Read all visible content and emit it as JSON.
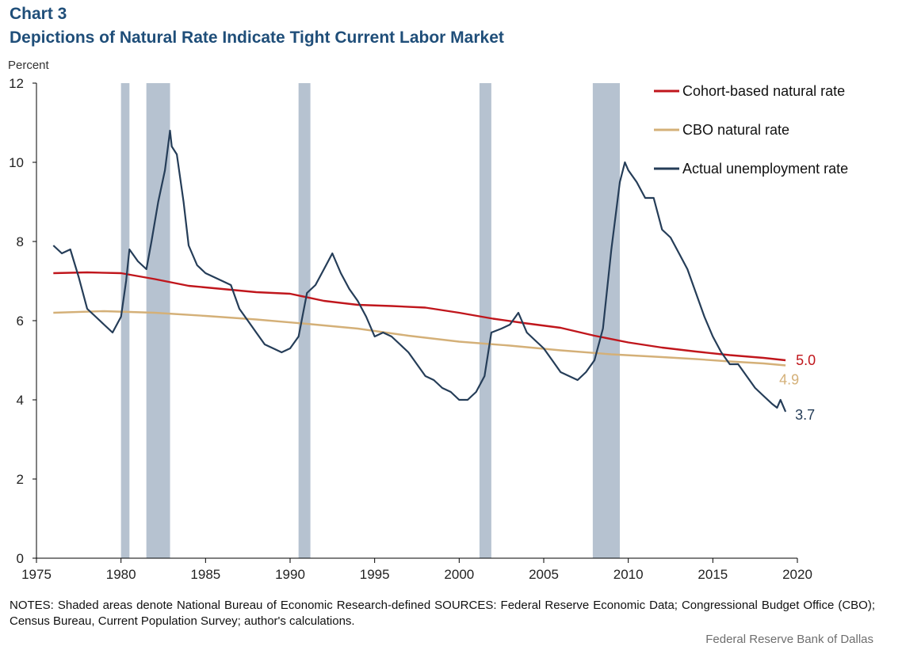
{
  "header": {
    "chart_number": "Chart 3",
    "title": "Depictions of Natural Rate Indicate Tight Current Labor Market"
  },
  "footer": {
    "notes": "NOTES: Shaded areas denote National Bureau of Economic Research-defined SOURCES: Federal Reserve Economic Data; Congressional Budget Office (CBO); Census Bureau, Current Population Survey; author's calculations.",
    "credit": "Federal Reserve  Bank of Dallas"
  },
  "colors": {
    "cohort": "#c0161c",
    "cbo": "#d4b078",
    "actual": "#253d58",
    "recession": "#b6c2d0",
    "axis": "#000000"
  },
  "chart_data": {
    "type": "line",
    "title": "Depictions of Natural Rate Indicate Tight Current Labor Market",
    "ylabel": "Percent",
    "xlabel": "",
    "xlim": [
      1976,
      2020
    ],
    "ylim": [
      0,
      12
    ],
    "x_ticks": [
      "1975",
      "1980",
      "1985",
      "1990",
      "1995",
      "2000",
      "2005",
      "2010",
      "2015",
      "2020"
    ],
    "y_ticks": [
      "0",
      "2",
      "4",
      "6",
      "8",
      "10",
      "12"
    ],
    "grid": false,
    "legend_position": "top-right",
    "recessions": [
      [
        1980.0,
        1980.5
      ],
      [
        1981.5,
        1982.9
      ],
      [
        1990.5,
        1991.2
      ],
      [
        2001.2,
        2001.9
      ],
      [
        2007.9,
        2009.5
      ]
    ],
    "series": [
      {
        "name": "Cohort-based natural rate",
        "color": "#c0161c",
        "end_label": "5.0",
        "points": [
          [
            1976.0,
            7.2
          ],
          [
            1978.0,
            7.22
          ],
          [
            1980.0,
            7.2
          ],
          [
            1982.0,
            7.05
          ],
          [
            1984.0,
            6.88
          ],
          [
            1986.0,
            6.8
          ],
          [
            1988.0,
            6.72
          ],
          [
            1990.0,
            6.68
          ],
          [
            1992.0,
            6.5
          ],
          [
            1994.0,
            6.4
          ],
          [
            1996.0,
            6.37
          ],
          [
            1998.0,
            6.33
          ],
          [
            2000.0,
            6.2
          ],
          [
            2002.0,
            6.05
          ],
          [
            2004.0,
            5.93
          ],
          [
            2006.0,
            5.82
          ],
          [
            2008.0,
            5.62
          ],
          [
            2010.0,
            5.45
          ],
          [
            2012.0,
            5.32
          ],
          [
            2014.0,
            5.22
          ],
          [
            2016.0,
            5.13
          ],
          [
            2018.0,
            5.06
          ],
          [
            2019.3,
            5.0
          ]
        ]
      },
      {
        "name": "CBO natural rate",
        "color": "#d4b078",
        "end_label": "4.9",
        "points": [
          [
            1976.0,
            6.2
          ],
          [
            1979.0,
            6.24
          ],
          [
            1982.0,
            6.2
          ],
          [
            1985.0,
            6.12
          ],
          [
            1988.0,
            6.03
          ],
          [
            1991.0,
            5.92
          ],
          [
            1994.0,
            5.8
          ],
          [
            1997.0,
            5.62
          ],
          [
            2000.0,
            5.47
          ],
          [
            2003.0,
            5.37
          ],
          [
            2006.0,
            5.25
          ],
          [
            2009.0,
            5.15
          ],
          [
            2012.0,
            5.08
          ],
          [
            2014.0,
            5.03
          ],
          [
            2016.0,
            4.97
          ],
          [
            2018.0,
            4.92
          ],
          [
            2019.3,
            4.87
          ]
        ]
      },
      {
        "name": "Actual unemployment rate",
        "color": "#253d58",
        "end_label": "3.7",
        "points": [
          [
            1976.0,
            7.9
          ],
          [
            1976.5,
            7.7
          ],
          [
            1977.0,
            7.8
          ],
          [
            1977.5,
            7.1
          ],
          [
            1978.0,
            6.3
          ],
          [
            1978.5,
            6.1
          ],
          [
            1979.0,
            5.9
          ],
          [
            1979.5,
            5.7
          ],
          [
            1980.0,
            6.1
          ],
          [
            1980.3,
            7.0
          ],
          [
            1980.5,
            7.8
          ],
          [
            1981.0,
            7.5
          ],
          [
            1981.5,
            7.3
          ],
          [
            1981.8,
            8.0
          ],
          [
            1982.2,
            9.0
          ],
          [
            1982.6,
            9.8
          ],
          [
            1982.9,
            10.8
          ],
          [
            1983.0,
            10.4
          ],
          [
            1983.3,
            10.2
          ],
          [
            1983.7,
            9.0
          ],
          [
            1984.0,
            7.9
          ],
          [
            1984.5,
            7.4
          ],
          [
            1985.0,
            7.2
          ],
          [
            1985.5,
            7.1
          ],
          [
            1986.0,
            7.0
          ],
          [
            1986.5,
            6.9
          ],
          [
            1987.0,
            6.3
          ],
          [
            1987.5,
            6.0
          ],
          [
            1988.0,
            5.7
          ],
          [
            1988.5,
            5.4
          ],
          [
            1989.0,
            5.3
          ],
          [
            1989.5,
            5.2
          ],
          [
            1990.0,
            5.3
          ],
          [
            1990.5,
            5.6
          ],
          [
            1991.0,
            6.7
          ],
          [
            1991.5,
            6.9
          ],
          [
            1992.0,
            7.3
          ],
          [
            1992.5,
            7.7
          ],
          [
            1993.0,
            7.2
          ],
          [
            1993.5,
            6.8
          ],
          [
            1994.0,
            6.5
          ],
          [
            1994.5,
            6.1
          ],
          [
            1995.0,
            5.6
          ],
          [
            1995.5,
            5.7
          ],
          [
            1996.0,
            5.6
          ],
          [
            1996.5,
            5.4
          ],
          [
            1997.0,
            5.2
          ],
          [
            1997.5,
            4.9
          ],
          [
            1998.0,
            4.6
          ],
          [
            1998.5,
            4.5
          ],
          [
            1999.0,
            4.3
          ],
          [
            1999.5,
            4.2
          ],
          [
            2000.0,
            4.0
          ],
          [
            2000.5,
            4.0
          ],
          [
            2001.0,
            4.2
          ],
          [
            2001.5,
            4.6
          ],
          [
            2001.9,
            5.7
          ],
          [
            2002.5,
            5.8
          ],
          [
            2003.0,
            5.9
          ],
          [
            2003.5,
            6.2
          ],
          [
            2004.0,
            5.7
          ],
          [
            2004.5,
            5.5
          ],
          [
            2005.0,
            5.3
          ],
          [
            2005.5,
            5.0
          ],
          [
            2006.0,
            4.7
          ],
          [
            2006.5,
            4.6
          ],
          [
            2007.0,
            4.5
          ],
          [
            2007.5,
            4.7
          ],
          [
            2008.0,
            5.0
          ],
          [
            2008.5,
            5.8
          ],
          [
            2009.0,
            7.8
          ],
          [
            2009.5,
            9.5
          ],
          [
            2009.8,
            10.0
          ],
          [
            2010.0,
            9.8
          ],
          [
            2010.5,
            9.5
          ],
          [
            2011.0,
            9.1
          ],
          [
            2011.5,
            9.1
          ],
          [
            2012.0,
            8.3
          ],
          [
            2012.5,
            8.1
          ],
          [
            2013.0,
            7.7
          ],
          [
            2013.5,
            7.3
          ],
          [
            2014.0,
            6.7
          ],
          [
            2014.5,
            6.1
          ],
          [
            2015.0,
            5.6
          ],
          [
            2015.5,
            5.2
          ],
          [
            2016.0,
            4.9
          ],
          [
            2016.5,
            4.9
          ],
          [
            2017.0,
            4.6
          ],
          [
            2017.5,
            4.3
          ],
          [
            2018.0,
            4.1
          ],
          [
            2018.5,
            3.9
          ],
          [
            2018.8,
            3.8
          ],
          [
            2019.0,
            4.0
          ],
          [
            2019.3,
            3.7
          ]
        ]
      }
    ]
  }
}
